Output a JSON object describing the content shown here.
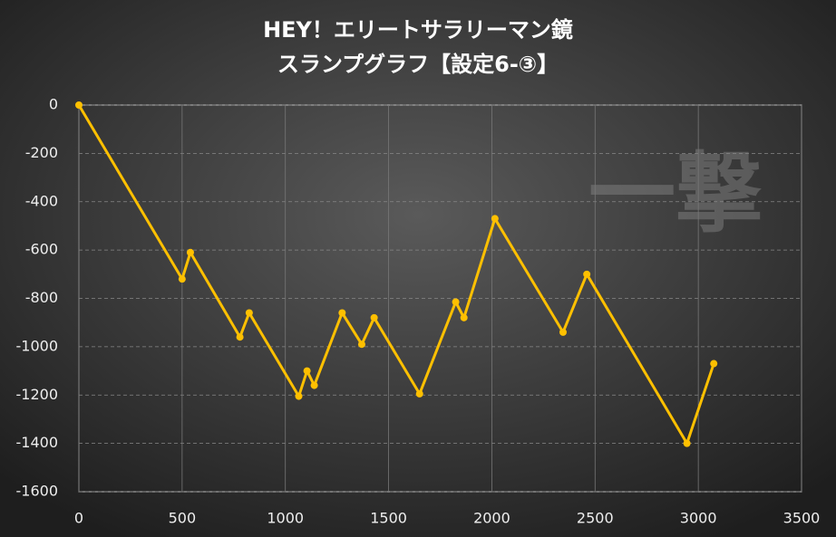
{
  "chart_data": {
    "type": "line",
    "title": [
      "HEY！エリートサラリーマン鏡",
      "スランプグラフ【設定6-③】"
    ],
    "watermark": "一撃",
    "x": [
      0,
      500,
      540,
      780,
      825,
      1065,
      1105,
      1140,
      1275,
      1370,
      1430,
      1650,
      1825,
      1865,
      2015,
      2345,
      2460,
      2945,
      3075
    ],
    "series": [
      {
        "name": "スランプ",
        "color": "#ffc000",
        "values": [
          0,
          -720,
          -610,
          -960,
          -860,
          -1205,
          -1100,
          -1160,
          -860,
          -990,
          -880,
          -1195,
          -815,
          -880,
          -470,
          -940,
          -700,
          -1400,
          -1070
        ]
      }
    ],
    "xlim": [
      0,
      3500
    ],
    "xticks": [
      0,
      500,
      1000,
      1500,
      2000,
      2500,
      3000,
      3500
    ],
    "ylim": [
      -1600,
      0
    ],
    "yticks": [
      0,
      -200,
      -400,
      -600,
      -800,
      -1000,
      -1200,
      -1400,
      -1600
    ],
    "grid": true
  }
}
